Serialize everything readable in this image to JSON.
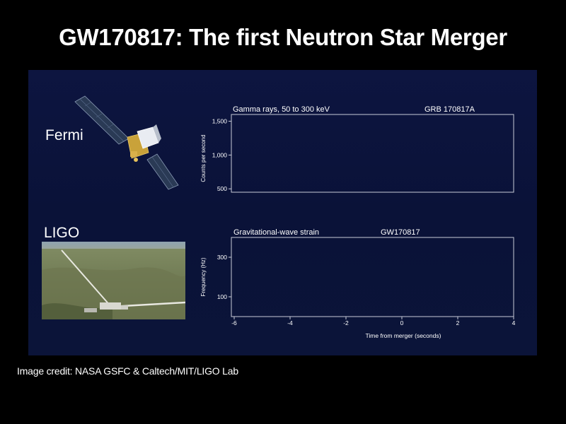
{
  "slide": {
    "title": "GW170817: The first Neutron Star Merger",
    "caption": "Image credit: NASA GSFC & Caltech/MIT/LIGO Lab",
    "fermi_label": "Fermi",
    "ligo_label": "LIGO"
  },
  "colors": {
    "panel": "#0b1339",
    "axis": "#c8cbd8",
    "text": "#ffffff"
  },
  "icons": [
    "fermi-satellite-icon",
    "ligo-observatory-photo"
  ],
  "chart_data": [
    {
      "type": "line",
      "title": "Gamma rays, 50 to 300 keV",
      "subtitle": "GRB 170817A",
      "ylabel": "Counts per second",
      "yticks": [
        500,
        1000,
        1500
      ],
      "ytick_labels": [
        "500",
        "1,000",
        "1,500"
      ],
      "ylim": [
        450,
        1600
      ],
      "xlim": [
        -6,
        4
      ],
      "series": []
    },
    {
      "type": "line",
      "title": "Gravitational-wave strain",
      "subtitle": "GW170817",
      "ylabel": "Frequency (Hz)",
      "xlabel": "Time from merger (seconds)",
      "yticks": [
        100,
        300
      ],
      "ytick_labels": [
        "100",
        "300"
      ],
      "ylim": [
        0,
        400
      ],
      "xlim": [
        -6,
        4
      ],
      "xticks": [
        -6,
        -4,
        -2,
        0,
        2,
        4
      ],
      "xtick_labels": [
        "-6",
        "-4",
        "-2",
        "0",
        "2",
        "4"
      ],
      "series": []
    }
  ]
}
